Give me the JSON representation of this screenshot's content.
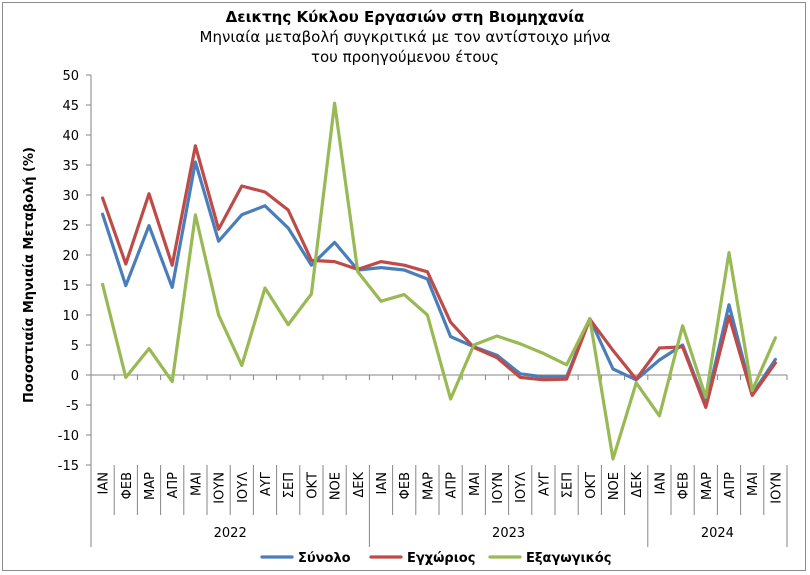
{
  "chart_data": {
    "type": "line",
    "title": "Δεικτης Κύκλου Εργασιών στη Βιομηχανία",
    "subtitle_lines": [
      "Μηνιαία μεταβολή συγκριτικά με τον αντίστοιχο μήνα",
      "του προηγούμενου έτους"
    ],
    "ylabel": "Ποσοστιαία Μηνιαία Μεταβολή (%)",
    "ylim": [
      -15,
      50
    ],
    "yticks": [
      -15,
      -10,
      -5,
      0,
      5,
      10,
      15,
      20,
      25,
      30,
      35,
      40,
      45,
      50
    ],
    "grid": false,
    "legend_position": "bottom",
    "categories": [
      "ΙΑΝ",
      "ΦΕΒ",
      "ΜΑΡ",
      "ΑΠΡ",
      "ΜΑΙ",
      "ΙΟΥΝ",
      "ΙΟΥΛ",
      "ΑΥΓ",
      "ΣΕΠ",
      "ΟΚΤ",
      "ΝΟΕ",
      "ΔΕΚ",
      "ΙΑΝ",
      "ΦΕΒ",
      "ΜΑΡ",
      "ΑΠΡ",
      "ΜΑΙ",
      "ΙΟΥΝ",
      "ΙΟΥΛ",
      "ΑΥΓ",
      "ΣΕΠ",
      "ΟΚΤ",
      "ΝΟΕ",
      "ΔΕΚ",
      "ΙΑΝ",
      "ΦΕΒ",
      "ΜΑΡ",
      "ΑΠΡ",
      "ΜΑΙ",
      "ΙΟΥΝ"
    ],
    "groups": [
      {
        "label": "2022",
        "count": 12
      },
      {
        "label": "2023",
        "count": 12
      },
      {
        "label": "2024",
        "count": 6
      }
    ],
    "series": [
      {
        "name": "Σύνολο",
        "color": "#4a7ebb",
        "values": [
          26.8,
          14.9,
          24.9,
          14.6,
          35.5,
          22.3,
          26.7,
          28.2,
          24.5,
          18.3,
          22.1,
          17.5,
          17.9,
          17.5,
          16.0,
          6.4,
          4.7,
          3.3,
          0.2,
          -0.3,
          -0.3,
          9.4,
          1.0,
          -0.8,
          2.5,
          5.0,
          -4.9,
          11.7,
          -3.2,
          2.6
        ]
      },
      {
        "name": "Εγχώριος",
        "color": "#be4b48",
        "values": [
          29.5,
          18.5,
          30.2,
          18.3,
          38.2,
          24.3,
          31.5,
          30.5,
          27.5,
          19.1,
          18.9,
          17.6,
          18.9,
          18.3,
          17.2,
          8.8,
          4.6,
          2.9,
          -0.4,
          -0.8,
          -0.7,
          9.3,
          4.1,
          -0.7,
          4.5,
          4.7,
          -5.4,
          9.8,
          -3.4,
          2.0
        ]
      },
      {
        "name": "Εξαγωγικός",
        "color": "#98b954",
        "values": [
          15.1,
          -0.4,
          4.4,
          -1.1,
          26.7,
          10.0,
          1.6,
          14.5,
          8.4,
          13.5,
          45.3,
          17.2,
          12.3,
          13.4,
          10.0,
          -4.0,
          5.0,
          6.5,
          5.2,
          3.6,
          1.7,
          9.4,
          -14.0,
          -1.3,
          -6.8,
          8.2,
          -3.7,
          20.4,
          -2.6,
          6.2
        ]
      }
    ]
  }
}
